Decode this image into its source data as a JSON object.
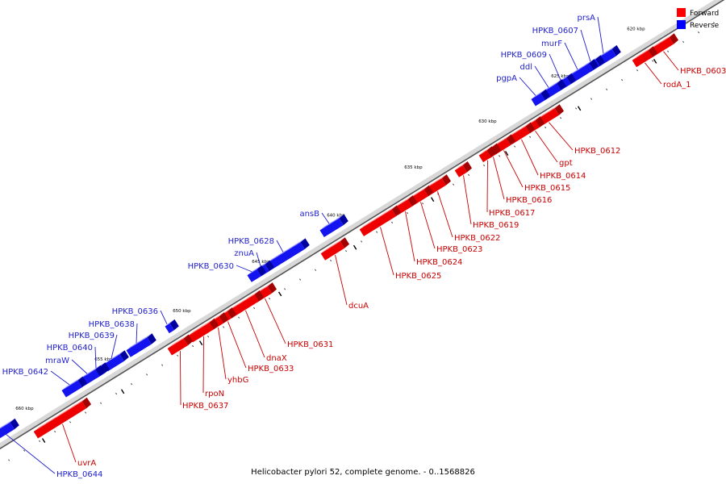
{
  "caption": "Helicobacter pylori 52, complete genome. - 0..1568826",
  "legend": {
    "forward": "Forward",
    "reverse": "Reverse",
    "forward_color": "#ff0000",
    "reverse_color": "#0000ff"
  },
  "colors": {
    "forward_fill": "#ee0000",
    "forward_top": "#ff9a9a",
    "forward_side": "#a30000",
    "forward_label": "#c80000",
    "reverse_fill": "#1414f0",
    "reverse_top": "#9a9aff",
    "reverse_side": "#0000a0",
    "reverse_label": "#1e1ecc",
    "backbone_light": "#d8d8d8",
    "backbone_dark": "#555555"
  },
  "tick_labels": [
    "620 kbp",
    "625 kbp",
    "630 kbp",
    "635 kbp",
    "640 kbp",
    "645 kbp",
    "650 kbp",
    "655 kbp",
    "660 kbp"
  ],
  "genes": [
    {
      "name": "HPKB_0603",
      "strand": "forward"
    },
    {
      "name": "rodA_1",
      "strand": "forward"
    },
    {
      "name": "prsA",
      "strand": "reverse"
    },
    {
      "name": "HPKB_0607",
      "strand": "reverse"
    },
    {
      "name": "murF",
      "strand": "reverse"
    },
    {
      "name": "HPKB_0609",
      "strand": "reverse"
    },
    {
      "name": "ddl",
      "strand": "reverse"
    },
    {
      "name": "pgpA",
      "strand": "reverse"
    },
    {
      "name": "HPKB_0612",
      "strand": "forward"
    },
    {
      "name": "gpt",
      "strand": "forward"
    },
    {
      "name": "HPKB_0614",
      "strand": "forward"
    },
    {
      "name": "HPKB_0615",
      "strand": "forward"
    },
    {
      "name": "HPKB_0616",
      "strand": "forward"
    },
    {
      "name": "HPKB_0617",
      "strand": "forward"
    },
    {
      "name": "HPKB_0619",
      "strand": "forward"
    },
    {
      "name": "HPKB_0622",
      "strand": "forward"
    },
    {
      "name": "HPKB_0623",
      "strand": "forward"
    },
    {
      "name": "HPKB_0624",
      "strand": "forward"
    },
    {
      "name": "HPKB_0625",
      "strand": "forward"
    },
    {
      "name": "ansB",
      "strand": "reverse"
    },
    {
      "name": "dcuA",
      "strand": "forward"
    },
    {
      "name": "HPKB_0628",
      "strand": "reverse"
    },
    {
      "name": "znuA",
      "strand": "reverse"
    },
    {
      "name": "HPKB_0630",
      "strand": "reverse"
    },
    {
      "name": "HPKB_0631",
      "strand": "forward"
    },
    {
      "name": "dnaX",
      "strand": "forward"
    },
    {
      "name": "HPKB_0633",
      "strand": "forward"
    },
    {
      "name": "yhbG",
      "strand": "forward"
    },
    {
      "name": "rpoN",
      "strand": "forward"
    },
    {
      "name": "HPKB_0636",
      "strand": "reverse"
    },
    {
      "name": "HPKB_0637",
      "strand": "forward"
    },
    {
      "name": "HPKB_0638",
      "strand": "reverse"
    },
    {
      "name": "HPKB_0639",
      "strand": "reverse"
    },
    {
      "name": "HPKB_0640",
      "strand": "reverse"
    },
    {
      "name": "mraW",
      "strand": "reverse"
    },
    {
      "name": "HPKB_0642",
      "strand": "reverse"
    },
    {
      "name": "uvrA",
      "strand": "forward"
    },
    {
      "name": "HPKB_0644",
      "strand": "reverse"
    }
  ]
}
